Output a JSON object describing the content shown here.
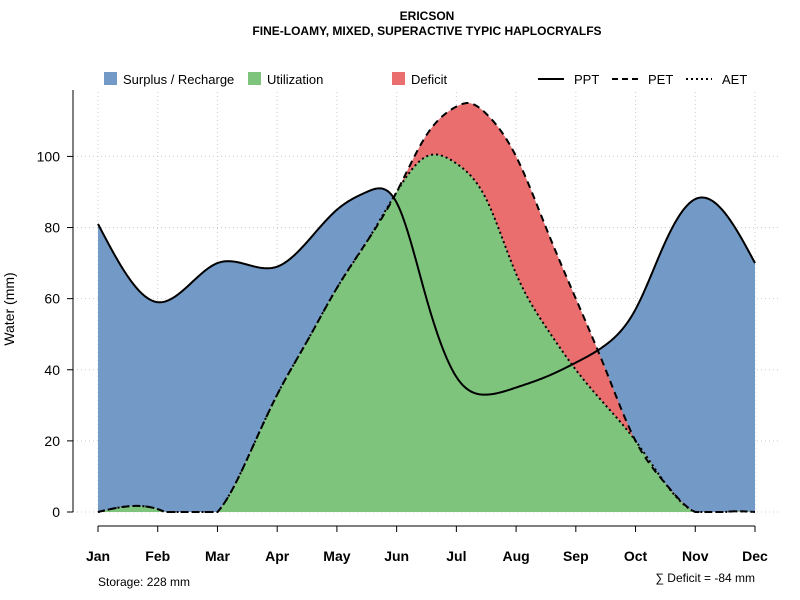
{
  "chart_data": {
    "type": "area",
    "title": "ERICSON",
    "subtitle": "FINE-LOAMY, MIXED, SUPERACTIVE TYPIC HAPLOCRYALFS",
    "ylabel": "Water (mm)",
    "xlabel": "",
    "ylim": [
      0,
      118
    ],
    "yticks": [
      0,
      20,
      40,
      60,
      80,
      100
    ],
    "grid": true,
    "categories": [
      "Jan",
      "Feb",
      "Mar",
      "Apr",
      "May",
      "Jun",
      "Jul",
      "Aug",
      "Sep",
      "Oct",
      "Nov",
      "Dec"
    ],
    "area_legend": [
      {
        "name": "Surplus / Recharge",
        "color": "#7399C6"
      },
      {
        "name": "Utilization",
        "color": "#7FC47D"
      },
      {
        "name": "Deficit",
        "color": "#EB6E6E"
      }
    ],
    "series": [
      {
        "name": "PPT",
        "style": "solid",
        "x": [
          1,
          2,
          3,
          4,
          5,
          5.5,
          6,
          6.5,
          7,
          7.5,
          8,
          8.5,
          9,
          9.5,
          10,
          10.5,
          11,
          11.5,
          12
        ],
        "values": [
          81,
          59,
          70,
          69,
          85,
          90,
          87,
          60,
          38,
          33,
          35,
          38,
          42,
          47,
          57,
          76,
          88,
          84,
          70
        ]
      },
      {
        "name": "PET",
        "style": "dashed",
        "x": [
          1,
          2,
          3,
          3.5,
          4,
          4.5,
          5,
          5.5,
          6,
          6.5,
          7,
          7.2,
          7.5,
          8,
          8.5,
          9,
          9.5,
          10,
          10.5,
          11,
          11.5,
          12
        ],
        "values": [
          0,
          0.8,
          0,
          15,
          33,
          48,
          63,
          76,
          90,
          106,
          114,
          115,
          112,
          100,
          80,
          60,
          40,
          20,
          8,
          0,
          0,
          0
        ]
      },
      {
        "name": "AET",
        "style": "dotted",
        "x": [
          1,
          2,
          3,
          3.5,
          4,
          4.5,
          5,
          5.5,
          6,
          6.5,
          7,
          7.5,
          8,
          8.5,
          9,
          9.5,
          10,
          10.5,
          11,
          11.5,
          12
        ],
        "values": [
          0,
          0.8,
          0,
          15,
          33,
          48,
          63,
          76,
          90,
          100,
          98,
          88,
          67,
          52,
          40,
          30,
          20,
          8,
          0,
          0,
          0
        ]
      }
    ],
    "annotations": {
      "storage": "Storage: 228 mm",
      "deficit": "∑ Deficit = -84 mm"
    }
  }
}
